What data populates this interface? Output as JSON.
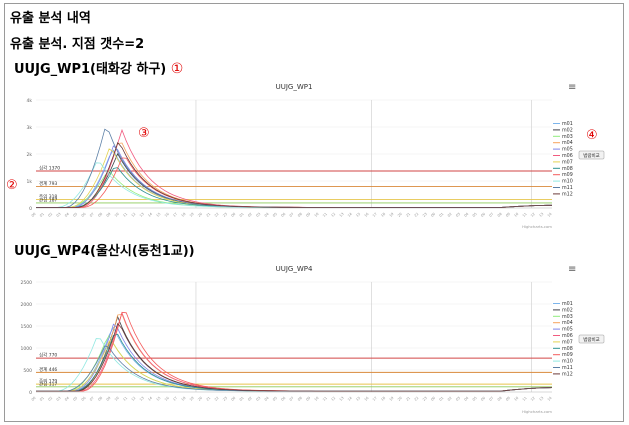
{
  "heading": "유출 분석 내역",
  "subheading": "유출 분석. 지점 갯수=2",
  "annotations": {
    "a1": "①",
    "a2": "②",
    "a3": "③",
    "a4": "④"
  },
  "charts": [
    {
      "section_title": "UUJG_WP1(태화강 하구)",
      "chart_title": "UUJG_WP1",
      "menu_icon": "≡",
      "compare_button": "범람비교",
      "credit": "Highcharts.com",
      "y_ticks": [
        "4k",
        "3k",
        "2k",
        "1k",
        "0"
      ],
      "thresholds": [
        {
          "label": "심각 1370",
          "value": 1370,
          "color": "#d24646"
        },
        {
          "label": "경계 793",
          "value": 793,
          "color": "#d8883a"
        },
        {
          "label": "주의 318",
          "value": 318,
          "color": "#e6c44b"
        },
        {
          "label": "관심 187",
          "value": 187,
          "color": "#8ecb5a"
        }
      ]
    },
    {
      "section_title": "UUJG_WP4(울산시(동천1교))",
      "chart_title": "UUJG_WP4",
      "menu_icon": "≡",
      "compare_button": "범람비교",
      "credit": "Highcharts.com",
      "y_ticks": [
        "2500",
        "2000",
        "1500",
        "1000",
        "500",
        "0"
      ],
      "thresholds": [
        {
          "label": "심각 770",
          "value": 770,
          "color": "#d24646"
        },
        {
          "label": "경계 446",
          "value": 446,
          "color": "#d8883a"
        },
        {
          "label": "주의 179",
          "value": 179,
          "color": "#e6c44b"
        },
        {
          "label": "관심 117",
          "value": 117,
          "color": "#8ecb5a"
        }
      ]
    }
  ],
  "legend": [
    {
      "name": "m01",
      "color": "#7cb5ec"
    },
    {
      "name": "m02",
      "color": "#434348"
    },
    {
      "name": "m03",
      "color": "#90ed7d"
    },
    {
      "name": "m04",
      "color": "#f7a35c"
    },
    {
      "name": "m05",
      "color": "#8085e9"
    },
    {
      "name": "m06",
      "color": "#f15c80"
    },
    {
      "name": "m07",
      "color": "#e4d354"
    },
    {
      "name": "m08",
      "color": "#2b908f"
    },
    {
      "name": "m09",
      "color": "#f45b5b"
    },
    {
      "name": "m10",
      "color": "#91e8e1"
    },
    {
      "name": "m11",
      "color": "#5b7fa6"
    },
    {
      "name": "m12",
      "color": "#6b3a3a"
    }
  ]
}
